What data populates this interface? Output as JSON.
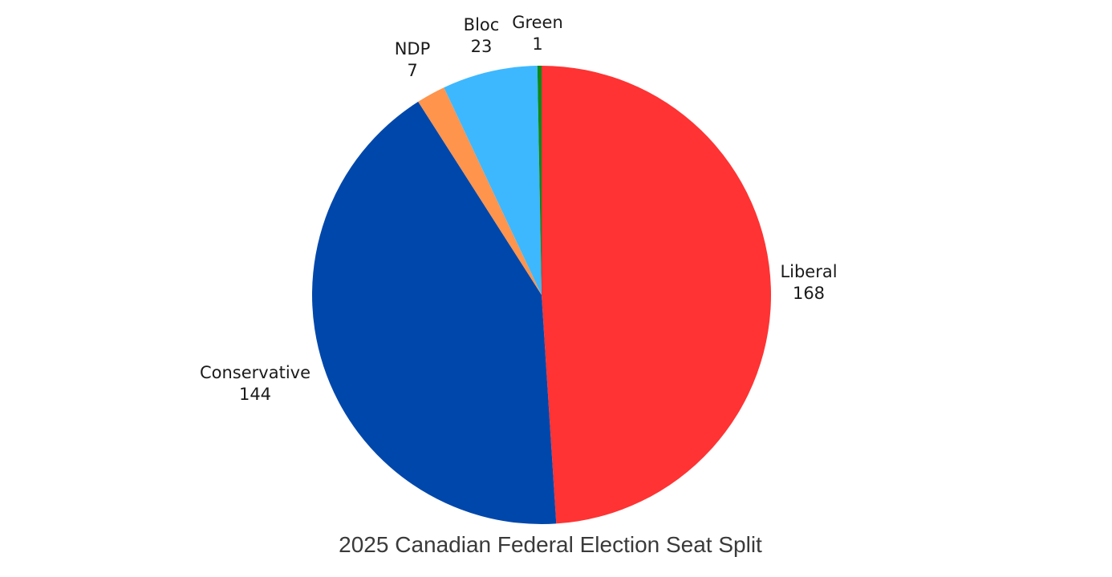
{
  "chart_data": {
    "type": "pie",
    "title": "2025 Canadian Federal Election Seat Split",
    "slices": [
      {
        "label": "Liberal",
        "value": 168,
        "color": "#ff3333"
      },
      {
        "label": "Conservative",
        "value": 144,
        "color": "#0047ab"
      },
      {
        "label": "NDP",
        "value": 7,
        "color": "#ff944d"
      },
      {
        "label": "Bloc",
        "value": 23,
        "color": "#3db8ff"
      },
      {
        "label": "Green",
        "value": 1,
        "color": "#0a8a1a"
      }
    ],
    "start_angle": "12 o'clock",
    "direction": "clockwise",
    "legend": "none",
    "labels": "outside"
  }
}
